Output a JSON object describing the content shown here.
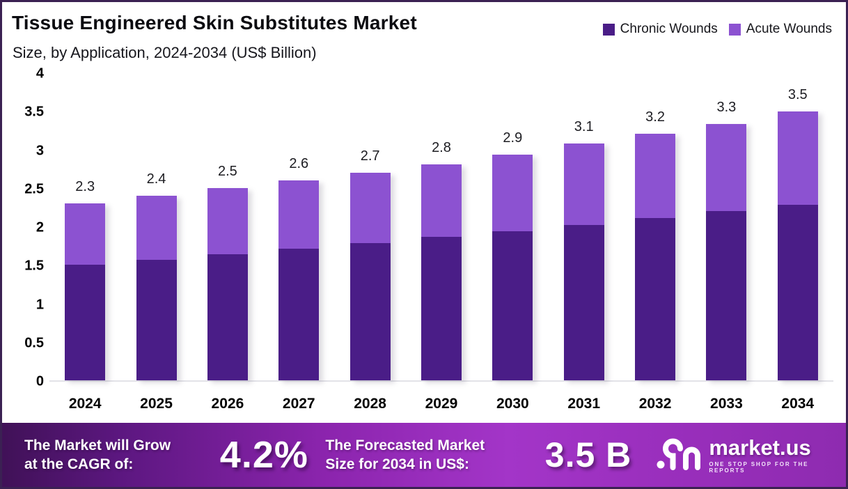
{
  "frame": {
    "border_color": "#3b2153",
    "background": "#ffffff"
  },
  "header": {
    "title": "Tissue Engineered Skin Substitutes Market",
    "subtitle": "Size, by Application, 2024-2034 (US$ Billion)"
  },
  "legend": [
    {
      "label": "Chronic Wounds",
      "color": "#4a1d87"
    },
    {
      "label": "Acute Wounds",
      "color": "#8c52d1"
    }
  ],
  "chart_data": {
    "type": "bar",
    "stacked": true,
    "title": "Tissue Engineered Skin Substitutes Market Size, by Application, 2024-2034 (US$ Billion)",
    "categories": [
      "2024",
      "2025",
      "2026",
      "2027",
      "2028",
      "2029",
      "2030",
      "2031",
      "2032",
      "2033",
      "2034"
    ],
    "series": [
      {
        "name": "Chronic Wounds",
        "color": "#4a1d87",
        "values": [
          1.5,
          1.57,
          1.64,
          1.71,
          1.78,
          1.86,
          1.94,
          2.02,
          2.11,
          2.2,
          2.28
        ]
      },
      {
        "name": "Acute Wounds",
        "color": "#8c52d1",
        "values": [
          0.8,
          0.83,
          0.86,
          0.89,
          0.92,
          0.95,
          0.99,
          1.06,
          1.09,
          1.13,
          1.21
        ]
      }
    ],
    "total_labels": [
      "2.3",
      "2.4",
      "2.5",
      "2.6",
      "2.7",
      "2.8",
      "2.9",
      "3.1",
      "3.2",
      "3.3",
      "3.5"
    ],
    "yticks": [
      {
        "label": "0",
        "value": 0
      },
      {
        "label": "0.5",
        "value": 0.5
      },
      {
        "label": "1",
        "value": 1
      },
      {
        "label": "1.5",
        "value": 1.5
      },
      {
        "label": "2",
        "value": 2
      },
      {
        "label": "2.5",
        "value": 2.5
      },
      {
        "label": "3",
        "value": 3
      },
      {
        "label": "3.5",
        "value": 3.5
      },
      {
        "label": "4",
        "value": 4
      }
    ],
    "ylim": [
      0,
      4
    ],
    "xlabel": "",
    "ylabel": "",
    "grid": false,
    "legend_position": "top-right"
  },
  "banner": {
    "cagr_label": "The Market will Grow\nat the CAGR of:",
    "cagr_value": "4.2%",
    "forecast_label": "The Forecasted Market\nSize for 2034 in US$:",
    "forecast_value": "3.5 B",
    "logo_icon": "market-us-swirl-icon",
    "logo_text": "market.us",
    "logo_tagline": "ONE STOP SHOP FOR THE REPORTS"
  }
}
